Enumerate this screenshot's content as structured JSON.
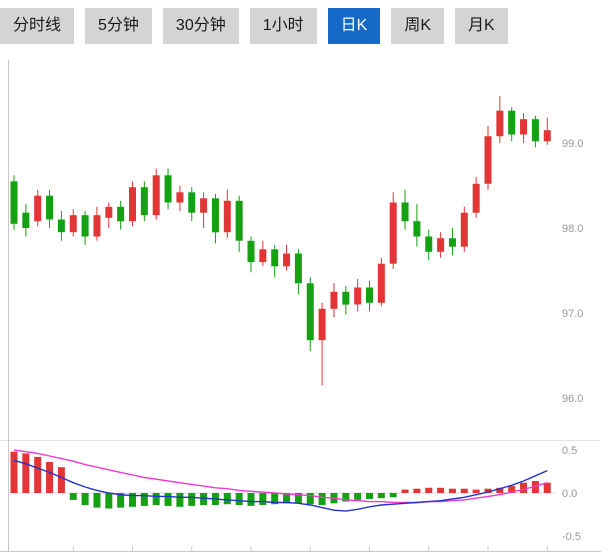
{
  "toolbar": {
    "tabs": [
      {
        "label": "分时线",
        "selected": false
      },
      {
        "label": "5分钟",
        "selected": false
      },
      {
        "label": "30分钟",
        "selected": false
      },
      {
        "label": "1小时",
        "selected": false
      },
      {
        "label": "日K",
        "selected": true
      },
      {
        "label": "周K",
        "selected": false
      },
      {
        "label": "月K",
        "selected": false
      }
    ]
  },
  "colors": {
    "up": "#e23535",
    "down": "#14a114",
    "dif_line": "#2433cc",
    "dea_line": "#ee3ad0",
    "axis": "#c8c8c8",
    "grid": "#dcdcdc",
    "separator": "#e3e3e3",
    "tick_text": "#999999",
    "tab_bg": "#d4d4d4",
    "tab_text": "#1a1a1a",
    "tab_selected_bg": "#1569c7",
    "tab_selected_text": "#ffffff"
  },
  "chart_data": {
    "type": "candlestick+macd",
    "title": "",
    "selected_period": "日K",
    "price_axis_ticks": [
      {
        "value": 99.0,
        "label": "99.0"
      },
      {
        "value": 98.0,
        "label": "98.0"
      },
      {
        "value": 97.0,
        "label": "97.0"
      },
      {
        "value": 96.0,
        "label": "96.0"
      }
    ],
    "candles_format": "open_high_low_close",
    "candles": [
      [
        98.55,
        98.62,
        97.98,
        98.05
      ],
      [
        98.18,
        98.28,
        97.9,
        98.0
      ],
      [
        98.08,
        98.45,
        98.02,
        98.38
      ],
      [
        98.38,
        98.45,
        98.0,
        98.1
      ],
      [
        98.1,
        98.2,
        97.85,
        97.95
      ],
      [
        97.95,
        98.22,
        97.9,
        98.15
      ],
      [
        98.15,
        98.2,
        97.8,
        97.9
      ],
      [
        97.9,
        98.25,
        97.85,
        98.15
      ],
      [
        98.12,
        98.3,
        98.0,
        98.25
      ],
      [
        98.25,
        98.32,
        97.98,
        98.08
      ],
      [
        98.08,
        98.55,
        98.02,
        98.48
      ],
      [
        98.48,
        98.55,
        98.08,
        98.15
      ],
      [
        98.15,
        98.7,
        98.1,
        98.62
      ],
      [
        98.62,
        98.7,
        98.22,
        98.3
      ],
      [
        98.3,
        98.5,
        98.2,
        98.42
      ],
      [
        98.42,
        98.48,
        98.08,
        98.18
      ],
      [
        98.18,
        98.42,
        98.0,
        98.35
      ],
      [
        98.35,
        98.4,
        97.82,
        97.95
      ],
      [
        97.95,
        98.45,
        97.88,
        98.32
      ],
      [
        98.32,
        98.38,
        97.72,
        97.85
      ],
      [
        97.85,
        97.9,
        97.48,
        97.6
      ],
      [
        97.6,
        97.85,
        97.55,
        97.75
      ],
      [
        97.75,
        97.8,
        97.42,
        97.55
      ],
      [
        97.55,
        97.8,
        97.5,
        97.7
      ],
      [
        97.7,
        97.75,
        97.22,
        97.35
      ],
      [
        97.35,
        97.42,
        96.55,
        96.68
      ],
      [
        96.68,
        97.12,
        96.15,
        97.05
      ],
      [
        97.05,
        97.35,
        96.95,
        97.25
      ],
      [
        97.25,
        97.32,
        96.98,
        97.1
      ],
      [
        97.1,
        97.4,
        97.02,
        97.3
      ],
      [
        97.3,
        97.38,
        97.02,
        97.12
      ],
      [
        97.12,
        97.65,
        97.08,
        97.58
      ],
      [
        97.58,
        98.42,
        97.52,
        98.3
      ],
      [
        98.3,
        98.45,
        97.98,
        98.08
      ],
      [
        98.08,
        98.28,
        97.78,
        97.9
      ],
      [
        97.9,
        97.98,
        97.62,
        97.72
      ],
      [
        97.72,
        97.95,
        97.65,
        97.88
      ],
      [
        97.88,
        98.0,
        97.68,
        97.78
      ],
      [
        97.78,
        98.25,
        97.72,
        98.18
      ],
      [
        98.18,
        98.6,
        98.12,
        98.52
      ],
      [
        98.52,
        99.2,
        98.45,
        99.08
      ],
      [
        99.08,
        99.55,
        99.0,
        99.38
      ],
      [
        99.38,
        99.42,
        99.02,
        99.1
      ],
      [
        99.1,
        99.35,
        99.0,
        99.28
      ],
      [
        99.28,
        99.32,
        98.95,
        99.02
      ],
      [
        99.02,
        99.3,
        98.98,
        99.15
      ]
    ],
    "macd": {
      "axis_ticks": [
        {
          "value": 0.5,
          "label": "0.5"
        },
        {
          "value": 0.0,
          "label": "0.0"
        },
        {
          "value": -0.5,
          "label": "-0.5"
        }
      ],
      "histogram": [
        0.48,
        0.46,
        0.42,
        0.36,
        0.3,
        -0.08,
        -0.14,
        -0.17,
        -0.18,
        -0.17,
        -0.16,
        -0.15,
        -0.14,
        -0.15,
        -0.16,
        -0.15,
        -0.14,
        -0.14,
        -0.13,
        -0.14,
        -0.15,
        -0.14,
        -0.13,
        -0.12,
        -0.12,
        -0.13,
        -0.14,
        -0.12,
        -0.1,
        -0.08,
        -0.07,
        -0.06,
        -0.05,
        0.04,
        0.05,
        0.06,
        0.06,
        0.05,
        0.05,
        0.04,
        0.05,
        0.06,
        0.08,
        0.12,
        0.14,
        0.12
      ],
      "dif": [
        0.38,
        0.34,
        0.29,
        0.24,
        0.18,
        0.12,
        0.07,
        0.03,
        0.0,
        -0.02,
        -0.03,
        -0.03,
        -0.04,
        -0.04,
        -0.05,
        -0.05,
        -0.06,
        -0.07,
        -0.08,
        -0.09,
        -0.1,
        -0.1,
        -0.11,
        -0.11,
        -0.12,
        -0.14,
        -0.17,
        -0.2,
        -0.21,
        -0.19,
        -0.16,
        -0.14,
        -0.13,
        -0.12,
        -0.11,
        -0.1,
        -0.09,
        -0.07,
        -0.05,
        -0.02,
        0.01,
        0.05,
        0.09,
        0.14,
        0.2,
        0.26
      ],
      "dea": [
        0.5,
        0.48,
        0.46,
        0.43,
        0.4,
        0.37,
        0.33,
        0.3,
        0.27,
        0.24,
        0.21,
        0.18,
        0.16,
        0.14,
        0.12,
        0.1,
        0.08,
        0.06,
        0.05,
        0.03,
        0.02,
        0.01,
        0.0,
        -0.01,
        -0.02,
        -0.03,
        -0.05,
        -0.06,
        -0.08,
        -0.09,
        -0.1,
        -0.1,
        -0.11,
        -0.11,
        -0.11,
        -0.1,
        -0.1,
        -0.09,
        -0.08,
        -0.06,
        -0.04,
        -0.02,
        0.01,
        0.04,
        0.08,
        0.12
      ]
    }
  }
}
